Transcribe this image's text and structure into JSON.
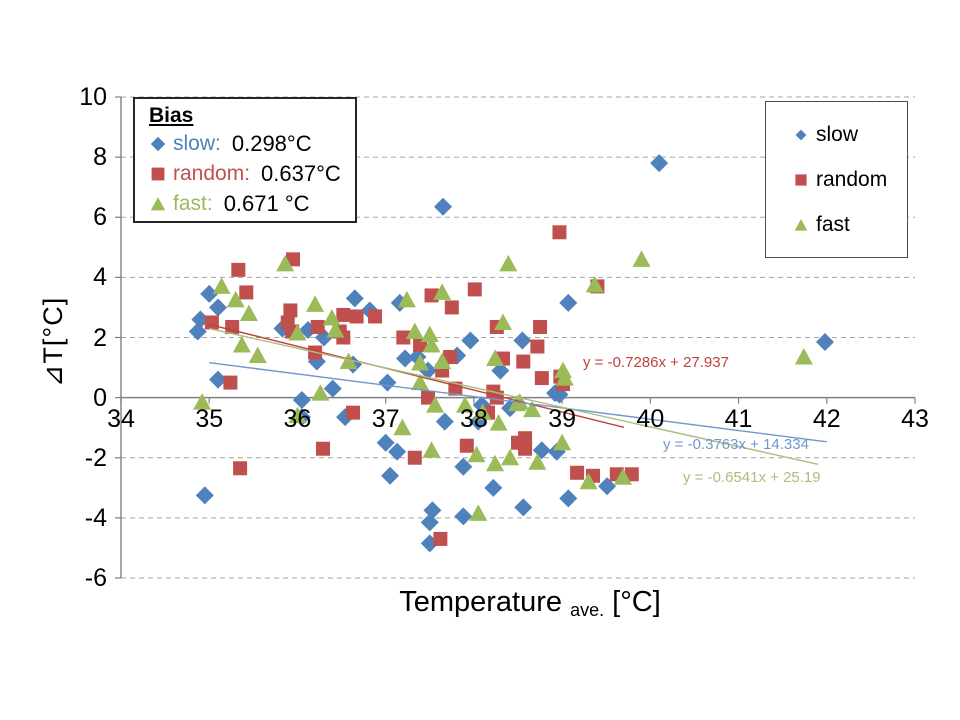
{
  "chart_data": {
    "type": "scatter",
    "xlabel": {
      "main": "Temperature",
      "subscript": "ave.",
      "unit": " [°C]"
    },
    "ylabel": "⊿T[°C]",
    "x_axis": {
      "min": 34,
      "max": 43,
      "step": 1,
      "ticks": [
        34,
        35,
        36,
        37,
        38,
        39,
        40,
        41,
        42,
        43
      ]
    },
    "y_axis": {
      "min": -6,
      "max": 10,
      "step": 2,
      "ticks": [
        10,
        8,
        6,
        4,
        2,
        0,
        -2,
        -4,
        -6
      ]
    },
    "grid": "horizontal-dashed",
    "legend_position": "right",
    "series": [
      {
        "name": "slow",
        "marker": "diamond",
        "color": "#4F81BD",
        "bias": "0.298°C",
        "points": [
          [
            34.87,
            2.2
          ],
          [
            34.9,
            2.6
          ],
          [
            34.95,
            -3.25
          ],
          [
            35.0,
            3.45
          ],
          [
            35.1,
            3.0
          ],
          [
            35.1,
            0.6
          ],
          [
            35.83,
            2.3
          ],
          [
            36.05,
            -0.08
          ],
          [
            36.05,
            -0.65
          ],
          [
            36.12,
            2.25
          ],
          [
            36.22,
            1.2
          ],
          [
            36.3,
            2.0
          ],
          [
            36.4,
            0.3
          ],
          [
            36.54,
            -0.65
          ],
          [
            36.63,
            1.1
          ],
          [
            36.65,
            3.3
          ],
          [
            36.82,
            2.9
          ],
          [
            37.0,
            -1.5
          ],
          [
            37.02,
            0.5
          ],
          [
            37.05,
            -2.6
          ],
          [
            37.13,
            -1.8
          ],
          [
            37.16,
            3.15
          ],
          [
            37.22,
            1.3
          ],
          [
            37.36,
            1.35
          ],
          [
            37.48,
            0.9
          ],
          [
            37.5,
            -4.15
          ],
          [
            37.5,
            -4.85
          ],
          [
            37.53,
            -3.75
          ],
          [
            37.65,
            6.35
          ],
          [
            37.67,
            -0.8
          ],
          [
            37.81,
            1.4
          ],
          [
            37.88,
            -2.3
          ],
          [
            37.88,
            -3.95
          ],
          [
            37.96,
            1.9
          ],
          [
            38.05,
            -0.8
          ],
          [
            38.09,
            -0.25
          ],
          [
            38.22,
            -3.0
          ],
          [
            38.3,
            0.9
          ],
          [
            38.41,
            -0.35
          ],
          [
            38.55,
            1.9
          ],
          [
            38.56,
            -3.65
          ],
          [
            38.77,
            -1.75
          ],
          [
            38.92,
            0.15
          ],
          [
            38.94,
            -1.8
          ],
          [
            38.97,
            0.1
          ],
          [
            39.07,
            3.15
          ],
          [
            39.07,
            -3.35
          ],
          [
            39.51,
            -2.95
          ],
          [
            40.1,
            7.8
          ],
          [
            41.98,
            1.85
          ]
        ]
      },
      {
        "name": "random",
        "marker": "square",
        "color": "#C0504D",
        "bias": "0.637°C",
        "points": [
          [
            35.03,
            2.5
          ],
          [
            35.24,
            0.5
          ],
          [
            35.26,
            2.35
          ],
          [
            35.33,
            4.25
          ],
          [
            35.35,
            -2.35
          ],
          [
            35.42,
            3.5
          ],
          [
            35.89,
            2.5
          ],
          [
            35.92,
            2.9
          ],
          [
            35.94,
            2.2
          ],
          [
            35.95,
            4.6
          ],
          [
            36.2,
            1.5
          ],
          [
            36.23,
            2.35
          ],
          [
            36.29,
            -1.7
          ],
          [
            36.48,
            2.2
          ],
          [
            36.52,
            2.75
          ],
          [
            36.52,
            2.0
          ],
          [
            36.63,
            -0.5
          ],
          [
            36.67,
            2.7
          ],
          [
            36.88,
            2.7
          ],
          [
            37.2,
            2.0
          ],
          [
            37.33,
            -2.0
          ],
          [
            37.39,
            1.75
          ],
          [
            37.48,
            0.0
          ],
          [
            37.52,
            3.4
          ],
          [
            37.62,
            -4.7
          ],
          [
            37.64,
            0.9
          ],
          [
            37.73,
            1.35
          ],
          [
            37.75,
            3.0
          ],
          [
            37.79,
            0.3
          ],
          [
            37.92,
            -1.6
          ],
          [
            38.01,
            3.6
          ],
          [
            38.16,
            -0.5
          ],
          [
            38.22,
            0.2
          ],
          [
            38.26,
            2.35
          ],
          [
            38.26,
            0.0
          ],
          [
            38.33,
            1.3
          ],
          [
            38.5,
            -1.5
          ],
          [
            38.56,
            1.2
          ],
          [
            38.58,
            -1.7
          ],
          [
            38.58,
            -1.35
          ],
          [
            38.72,
            1.7
          ],
          [
            38.75,
            2.35
          ],
          [
            38.77,
            0.65
          ],
          [
            38.97,
            5.5
          ],
          [
            38.98,
            0.7
          ],
          [
            39.01,
            0.45
          ],
          [
            39.17,
            -2.5
          ],
          [
            39.35,
            -2.6
          ],
          [
            39.4,
            3.7
          ],
          [
            39.62,
            -2.55
          ],
          [
            39.79,
            -2.55
          ]
        ]
      },
      {
        "name": "fast",
        "marker": "triangle",
        "color": "#9BBB59",
        "bias": "0.671 °C",
        "points": [
          [
            34.92,
            -0.15
          ],
          [
            35.14,
            3.7
          ],
          [
            35.3,
            3.25
          ],
          [
            35.37,
            1.75
          ],
          [
            35.45,
            2.8
          ],
          [
            35.55,
            1.4
          ],
          [
            35.86,
            4.45
          ],
          [
            36.0,
            2.15
          ],
          [
            36.0,
            -0.6
          ],
          [
            36.2,
            3.1
          ],
          [
            36.26,
            0.15
          ],
          [
            36.39,
            2.65
          ],
          [
            36.43,
            2.25
          ],
          [
            36.58,
            1.2
          ],
          [
            37.19,
            -1.0
          ],
          [
            37.24,
            3.25
          ],
          [
            37.33,
            2.2
          ],
          [
            37.39,
            1.15
          ],
          [
            37.39,
            0.5
          ],
          [
            37.5,
            2.1
          ],
          [
            37.52,
            1.75
          ],
          [
            37.52,
            -1.75
          ],
          [
            37.56,
            -0.25
          ],
          [
            37.64,
            3.5
          ],
          [
            37.64,
            1.2
          ],
          [
            37.9,
            -0.25
          ],
          [
            38.03,
            -1.9
          ],
          [
            38.05,
            -3.85
          ],
          [
            38.1,
            -0.5
          ],
          [
            38.24,
            1.3
          ],
          [
            38.24,
            -2.2
          ],
          [
            38.28,
            -0.85
          ],
          [
            38.33,
            2.5
          ],
          [
            38.39,
            4.45
          ],
          [
            38.41,
            -2.0
          ],
          [
            38.49,
            -0.2
          ],
          [
            38.52,
            -0.15
          ],
          [
            38.66,
            -0.4
          ],
          [
            38.72,
            -2.15
          ],
          [
            39.0,
            -1.5
          ],
          [
            39.01,
            0.9
          ],
          [
            39.03,
            0.65
          ],
          [
            39.3,
            -2.8
          ],
          [
            39.37,
            3.75
          ],
          [
            39.69,
            -2.65
          ],
          [
            39.9,
            4.6
          ],
          [
            41.74,
            1.35
          ]
        ]
      }
    ],
    "trendlines": [
      {
        "series": "random",
        "equation": "y = -0.7286x + 27.937",
        "slope": -0.7286,
        "intercept": 27.937,
        "x_range": [
          35.0,
          39.7
        ],
        "color": "#C0413E"
      },
      {
        "series": "slow",
        "equation": "y = -0.3763x + 14.334",
        "slope": -0.3763,
        "intercept": 14.334,
        "x_range": [
          35.0,
          42.0
        ],
        "color": "#7396CB"
      },
      {
        "series": "fast",
        "equation": "y = -0.6541x + 25.19",
        "slope": -0.6541,
        "intercept": 25.19,
        "x_range": [
          35.0,
          41.9
        ],
        "color": "#A9BE7B"
      }
    ],
    "bias_box": {
      "title": "Bias",
      "entries": [
        {
          "series": "slow",
          "label": "slow:",
          "value": "0.298°C"
        },
        {
          "series": "random",
          "label": "random:",
          "value": "0.637°C"
        },
        {
          "series": "fast",
          "label": "fast:",
          "value": "0.671 °C"
        }
      ]
    },
    "legend_items": [
      "slow",
      "random",
      "fast"
    ]
  }
}
